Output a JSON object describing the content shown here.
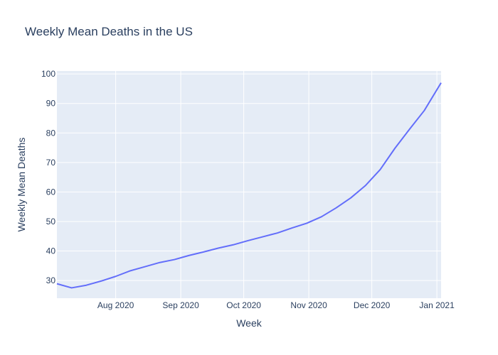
{
  "chart_data": {
    "type": "line",
    "title": "Weekly Mean Deaths in the US",
    "xlabel": "Week",
    "ylabel": "Weekly Mean Deaths",
    "x_range": [
      "2020-07-04",
      "2021-01-03"
    ],
    "ylim": [
      24,
      101
    ],
    "grid": true,
    "legend": "none",
    "colors": {
      "plot_bg": "#e5ecf6",
      "grid": "#ffffff",
      "line": "#636efa",
      "text": "#2a3f5f"
    },
    "x_ticks": [
      {
        "date": "2020-08-01",
        "label": "Aug 2020"
      },
      {
        "date": "2020-09-01",
        "label": "Sep 2020"
      },
      {
        "date": "2020-10-01",
        "label": "Oct 2020"
      },
      {
        "date": "2020-11-01",
        "label": "Nov 2020"
      },
      {
        "date": "2020-12-01",
        "label": "Dec 2020"
      },
      {
        "date": "2021-01-01",
        "label": "Jan 2021"
      }
    ],
    "y_ticks": [
      30,
      40,
      50,
      60,
      70,
      80,
      90,
      100
    ],
    "series": [
      {
        "x": [
          "2020-07-04",
          "2020-07-11",
          "2020-07-18",
          "2020-07-25",
          "2020-08-01",
          "2020-08-08",
          "2020-08-15",
          "2020-08-22",
          "2020-08-29",
          "2020-09-05",
          "2020-09-12",
          "2020-09-19",
          "2020-09-26",
          "2020-10-03",
          "2020-10-10",
          "2020-10-17",
          "2020-10-24",
          "2020-10-31",
          "2020-11-07",
          "2020-11-14",
          "2020-11-21",
          "2020-11-28",
          "2020-12-05",
          "2020-12-12",
          "2020-12-19",
          "2020-12-26",
          "2021-01-03"
        ],
        "values": [
          28.9,
          27.5,
          28.4,
          29.8,
          31.4,
          33.3,
          34.7,
          36.1,
          37.1,
          38.5,
          39.7,
          41.0,
          42.1,
          43.5,
          44.8,
          46.1,
          47.8,
          49.4,
          51.6,
          54.6,
          58.0,
          62.2,
          67.6,
          74.8,
          81.3,
          87.6,
          97.0
        ]
      }
    ]
  }
}
